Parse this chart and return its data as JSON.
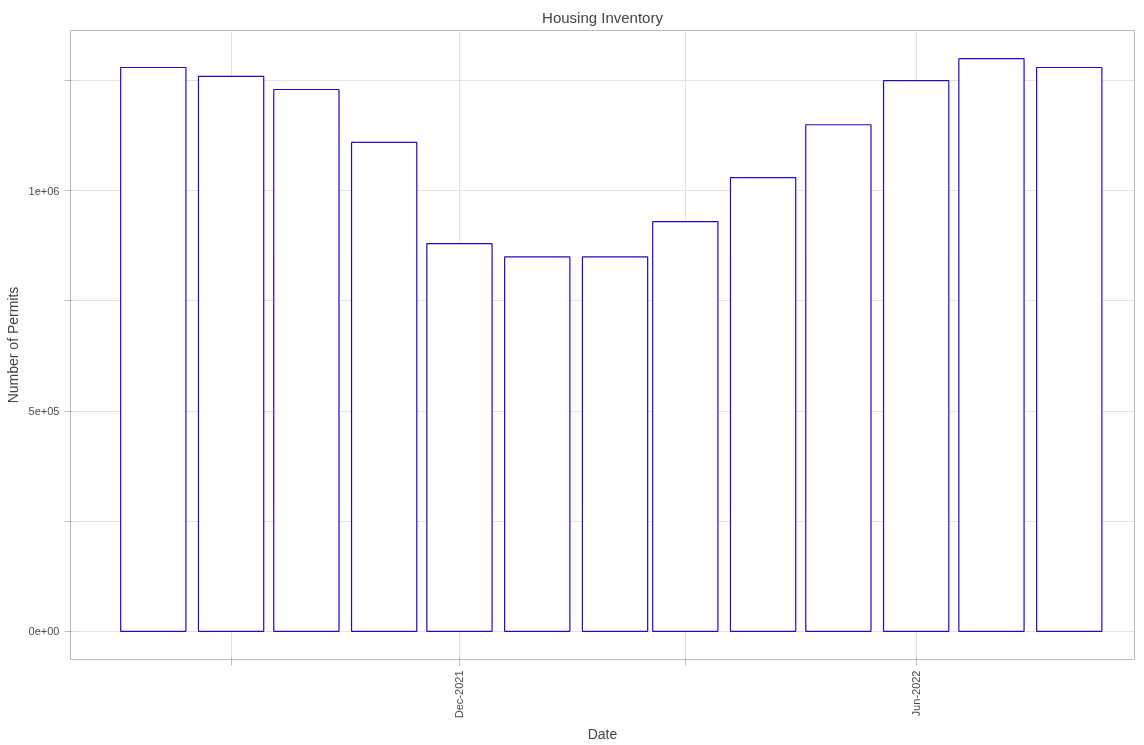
{
  "chart_data": {
    "type": "bar",
    "title": "Housing Inventory",
    "xlabel": "Date",
    "ylabel": "Number of Permits",
    "x": [
      "2021-08-01",
      "2021-09-01",
      "2021-10-01",
      "2021-11-01",
      "2021-12-01",
      "2022-01-01",
      "2022-02-01",
      "2022-03-01",
      "2022-04-01",
      "2022-05-01",
      "2022-06-01",
      "2022-07-01",
      "2022-08-01"
    ],
    "values": [
      1280000,
      1260000,
      1230000,
      1110000,
      880000,
      850000,
      850000,
      930000,
      1030000,
      1150000,
      1250000,
      1300000,
      1280000
    ],
    "color": "#1a0dc8",
    "xlim": [
      "2021-06-29",
      "2022-08-27"
    ],
    "xticks": [
      {
        "value": "2021-09-01",
        "label": null
      },
      {
        "value": "2021-12-01",
        "label": "Dec-2021"
      },
      {
        "value": "2022-03-01",
        "label": null
      },
      {
        "value": "2022-06-01",
        "label": "Jun-2022"
      }
    ],
    "ylim": [
      -64000,
      1364000
    ],
    "yticks": [
      {
        "value": 0,
        "label": "0e+00"
      },
      {
        "value": 250000,
        "label": null
      },
      {
        "value": 500000,
        "label": "5e+05"
      },
      {
        "value": 750000,
        "label": null
      },
      {
        "value": 1000000,
        "label": "1e+06"
      },
      {
        "value": 1250000,
        "label": null
      }
    ],
    "grid": true
  }
}
